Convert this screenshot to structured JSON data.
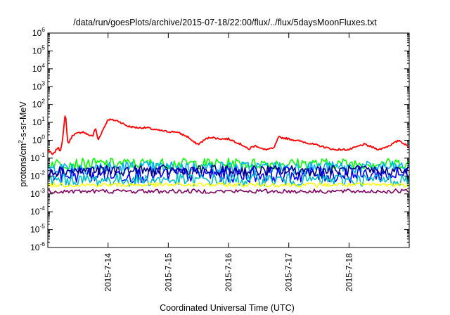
{
  "chart_data": {
    "type": "line",
    "title": "/data/run/goesPlots/archive/2015-07-18/22:00/flux/../flux/5daysMoonFluxes.txt",
    "xlabel": "Coordinated Universal Time (UTC)",
    "ylabel": {
      "base": "protons/cm",
      "sup": "2",
      "rest": "-s-sr-MeV"
    },
    "yscale": "log",
    "ylim": [
      1e-06,
      1000000.0
    ],
    "yticks": [
      {
        "mantissa": "10",
        "exp": "6"
      },
      {
        "mantissa": "10",
        "exp": "5"
      },
      {
        "mantissa": "10",
        "exp": "4"
      },
      {
        "mantissa": "10",
        "exp": "3"
      },
      {
        "mantissa": "10",
        "exp": "2"
      },
      {
        "mantissa": "10",
        "exp": "1"
      },
      {
        "mantissa": "10",
        "exp": "0"
      },
      {
        "mantissa": "10",
        "exp": "-1"
      },
      {
        "mantissa": "10",
        "exp": "-2"
      },
      {
        "mantissa": "10",
        "exp": "-3"
      },
      {
        "mantissa": "10",
        "exp": "-4"
      },
      {
        "mantissa": "10",
        "exp": "-5"
      },
      {
        "mantissa": "10",
        "exp": "-6"
      }
    ],
    "xlim": [
      "2015-07-13 00:00",
      "2015-07-18 23:59"
    ],
    "xticks": [
      "2015-7-14",
      "2015-7-15",
      "2015-7-16",
      "2015-7-17",
      "2015-7-18"
    ],
    "grid": false,
    "legend": "none",
    "series": [
      {
        "color": "#ff0000",
        "noise": 0.05,
        "x": [
          "2015-07-13 00:00",
          "2015-07-13 02:00",
          "2015-07-13 04:00",
          "2015-07-13 05:00",
          "2015-07-13 06:00",
          "2015-07-13 07:00",
          "2015-07-13 08:00",
          "2015-07-13 10:00",
          "2015-07-13 12:00",
          "2015-07-13 14:00",
          "2015-07-13 16:00",
          "2015-07-13 18:00",
          "2015-07-13 19:00",
          "2015-07-13 20:00",
          "2015-07-13 22:00",
          "2015-07-14 00:00",
          "2015-07-14 04:00",
          "2015-07-14 08:00",
          "2015-07-14 12:00",
          "2015-07-14 16:00",
          "2015-07-14 18:00",
          "2015-07-14 21:00",
          "2015-07-15 00:00",
          "2015-07-15 03:00",
          "2015-07-15 06:00",
          "2015-07-15 08:00",
          "2015-07-15 10:00",
          "2015-07-15 12:00",
          "2015-07-15 15:00",
          "2015-07-15 17:00",
          "2015-07-15 19:00",
          "2015-07-15 21:00",
          "2015-07-16 00:00",
          "2015-07-16 03:00",
          "2015-07-16 06:00",
          "2015-07-16 08:00",
          "2015-07-16 09:00",
          "2015-07-16 11:00",
          "2015-07-16 14:00",
          "2015-07-16 18:00",
          "2015-07-16 20:00",
          "2015-07-17 00:00",
          "2015-07-17 06:00",
          "2015-07-17 12:00",
          "2015-07-17 18:00",
          "2015-07-18 00:00",
          "2015-07-18 06:00",
          "2015-07-18 12:00",
          "2015-07-18 16:00",
          "2015-07-18 20:00",
          "2015-07-18 23:59"
        ],
        "values": [
          0.3,
          0.15,
          0.4,
          0.25,
          1.5,
          35,
          0.6,
          2.0,
          2.5,
          3.0,
          2.0,
          1.8,
          5.0,
          1.0,
          4.0,
          15,
          12,
          6.0,
          5.0,
          5.0,
          4.0,
          3.5,
          3.0,
          3.0,
          2.0,
          1.5,
          0.8,
          0.6,
          1.2,
          1.5,
          1.3,
          1.2,
          1.2,
          0.8,
          0.5,
          0.3,
          0.4,
          0.5,
          0.3,
          0.35,
          1.5,
          1.2,
          0.8,
          0.5,
          0.3,
          0.3,
          0.6,
          0.3,
          0.5,
          1.0,
          0.4
        ]
      },
      {
        "color": "#00ff00",
        "base": 0.05,
        "noise": 0.3,
        "x": [
          "2015-07-13 00:00",
          "2015-07-18 23:59"
        ],
        "values": [
          0.05,
          0.05
        ]
      },
      {
        "color": "#00b0ff",
        "base": 0.03,
        "noise": 0.35,
        "x": [
          "2015-07-13 00:00",
          "2015-07-18 23:59"
        ],
        "values": [
          0.03,
          0.03
        ]
      },
      {
        "color": "#0000ff",
        "base": 0.012,
        "noise": 0.45,
        "x": [
          "2015-07-13 00:00",
          "2015-07-18 23:59"
        ],
        "values": [
          0.012,
          0.012
        ]
      },
      {
        "color": "#000080",
        "base": 0.02,
        "noise": 0.3,
        "x": [
          "2015-07-13 00:00",
          "2015-07-18 23:59"
        ],
        "values": [
          0.02,
          0.02
        ]
      },
      {
        "color": "#00c0c0",
        "base": 0.006,
        "noise": 0.35,
        "x": [
          "2015-07-13 00:00",
          "2015-07-18 23:59"
        ],
        "values": [
          0.006,
          0.006
        ]
      },
      {
        "color": "#ffff00",
        "base": 0.0032,
        "noise": 0.12,
        "x": [
          "2015-07-13 00:00",
          "2015-07-18 23:59"
        ],
        "values": [
          0.0032,
          0.0032
        ]
      },
      {
        "color": "#800060",
        "base": 0.0014,
        "noise": 0.12,
        "x": [
          "2015-07-13 00:00",
          "2015-07-18 23:59"
        ],
        "values": [
          0.0014,
          0.0014
        ]
      }
    ]
  }
}
